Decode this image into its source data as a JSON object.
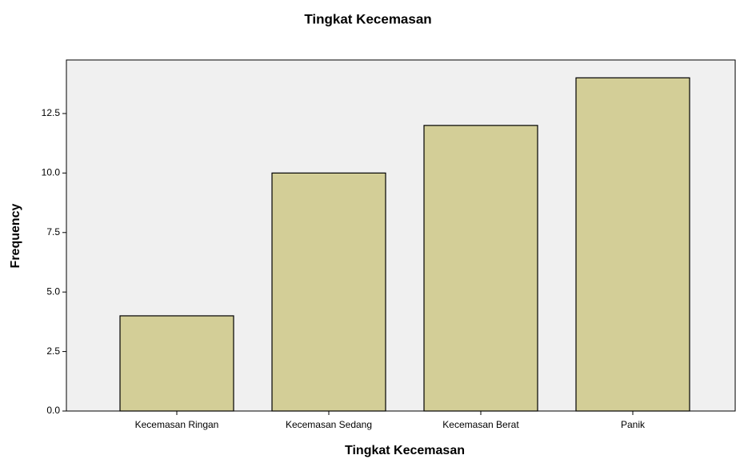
{
  "chart_data": {
    "type": "bar",
    "title": "Tingkat Kecemasan",
    "x_label": "Tingkat Kecemasan",
    "y_label": "Frequency",
    "categories": [
      "Kecemasan Ringan",
      "Kecemasan Sedang",
      "Kecemasan Berat",
      "Panik"
    ],
    "values": [
      4,
      10,
      12,
      14
    ],
    "color": "#d3ce97",
    "ylim": [
      0,
      14.75
    ],
    "yticks": [
      {
        "value": 0,
        "label": "0.0"
      },
      2.5,
      {
        "value": 5,
        "label": "5.0"
      },
      7.5,
      {
        "value": 10,
        "label": "10.0"
      },
      12.5
    ],
    "grid": false
  }
}
